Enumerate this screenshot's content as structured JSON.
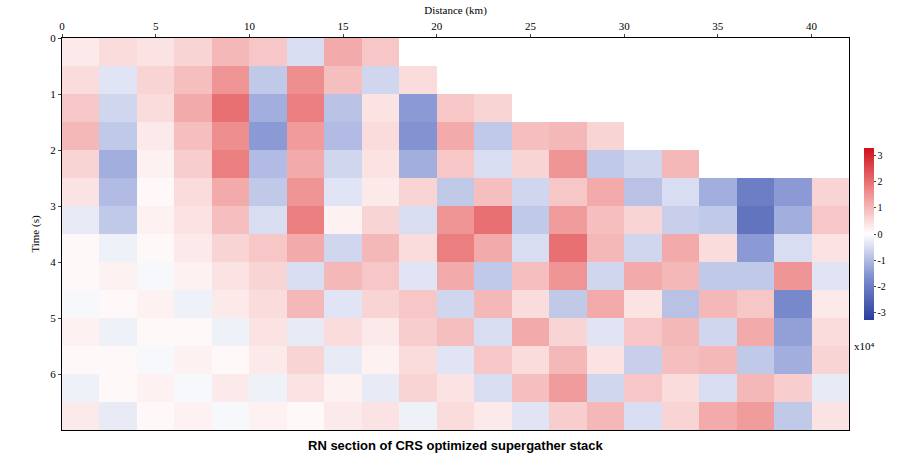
{
  "chart_data": {
    "type": "heatmap",
    "title": "RN section of CRS optimized supergather stack",
    "x_label": "Distance (km)",
    "y_label": "Time (s)",
    "x": [
      1,
      3,
      5,
      7,
      9,
      11,
      13,
      15,
      17,
      19,
      21,
      23,
      25,
      27,
      29,
      31,
      33,
      35,
      37,
      39,
      41
    ],
    "y": [
      0.25,
      0.75,
      1.25,
      1.75,
      2.25,
      2.75,
      3.25,
      3.75,
      4.25,
      4.75,
      5.25,
      5.75,
      6.25,
      6.75
    ],
    "z": [
      [
        0.3,
        0.5,
        0.4,
        0.6,
        1.0,
        0.8,
        -0.5,
        1.2,
        0.8,
        null,
        null,
        null,
        null,
        null,
        null,
        null,
        null,
        null,
        null,
        null,
        null
      ],
      [
        0.5,
        -0.4,
        0.6,
        0.9,
        1.5,
        -0.8,
        1.6,
        0.9,
        -0.6,
        0.5,
        null,
        null,
        null,
        null,
        null,
        null,
        null,
        null,
        null,
        null,
        null
      ],
      [
        0.8,
        -0.6,
        0.5,
        1.2,
        2.0,
        -1.2,
        1.8,
        -0.9,
        0.4,
        -1.5,
        0.8,
        0.6,
        null,
        null,
        null,
        null,
        null,
        null,
        null,
        null,
        null
      ],
      [
        1.0,
        -0.8,
        0.3,
        0.9,
        1.6,
        -1.5,
        1.4,
        -1.0,
        0.5,
        -1.6,
        1.2,
        -0.8,
        0.9,
        1.0,
        0.6,
        null,
        null,
        null,
        null,
        null,
        null
      ],
      [
        0.6,
        -1.2,
        0.2,
        0.7,
        1.8,
        -1.0,
        1.2,
        -0.6,
        0.4,
        -1.2,
        0.8,
        -0.5,
        0.6,
        1.5,
        -0.8,
        -0.6,
        1.0,
        null,
        null,
        null,
        null
      ],
      [
        0.4,
        -1.0,
        0.1,
        0.5,
        1.2,
        -0.8,
        1.5,
        -0.4,
        0.3,
        0.6,
        -0.8,
        0.9,
        -0.6,
        0.8,
        1.2,
        -0.9,
        -0.5,
        -1.2,
        -2.0,
        -1.5,
        0.6
      ],
      [
        -0.3,
        -0.8,
        0.2,
        0.4,
        0.9,
        -0.5,
        1.8,
        0.2,
        0.6,
        -0.5,
        1.5,
        2.0,
        -0.8,
        1.4,
        0.9,
        0.6,
        -0.7,
        -0.8,
        -2.2,
        -1.2,
        0.8
      ],
      [
        0.1,
        -0.2,
        0.1,
        0.3,
        0.6,
        0.8,
        1.2,
        -0.6,
        1.0,
        0.5,
        1.8,
        1.2,
        -0.5,
        2.0,
        1.0,
        -0.6,
        1.2,
        0.5,
        -1.5,
        -0.5,
        0.4
      ],
      [
        0.1,
        0.2,
        -0.1,
        0.2,
        0.4,
        0.6,
        -0.5,
        1.0,
        0.8,
        -0.4,
        1.2,
        -0.8,
        0.9,
        1.5,
        -0.6,
        1.2,
        1.0,
        -0.8,
        -0.8,
        1.5,
        -0.4
      ],
      [
        -0.1,
        0.1,
        0.2,
        -0.2,
        0.3,
        0.5,
        1.0,
        -0.4,
        0.6,
        0.8,
        -0.6,
        1.0,
        0.5,
        -0.8,
        1.2,
        0.4,
        -0.9,
        1.0,
        0.8,
        -1.8,
        0.3
      ],
      [
        0.2,
        -0.2,
        0.1,
        0.1,
        -0.2,
        0.4,
        -0.3,
        0.5,
        0.3,
        0.7,
        0.9,
        -0.5,
        1.2,
        0.6,
        -0.4,
        0.8,
        1.0,
        -0.6,
        1.2,
        -1.4,
        0.5
      ],
      [
        0.1,
        0.1,
        -0.1,
        0.2,
        0.1,
        0.3,
        0.6,
        -0.3,
        0.2,
        0.5,
        -0.4,
        0.8,
        0.5,
        1.0,
        0.4,
        -0.7,
        0.9,
        1.0,
        -0.8,
        -1.2,
        0.6
      ],
      [
        -0.2,
        0.1,
        0.2,
        -0.1,
        0.3,
        -0.2,
        0.4,
        0.2,
        -0.3,
        0.6,
        0.4,
        -0.5,
        0.9,
        1.4,
        -0.6,
        0.8,
        0.5,
        -0.5,
        1.0,
        0.7,
        -0.3
      ],
      [
        0.3,
        -0.3,
        0.1,
        0.2,
        -0.1,
        0.2,
        0.1,
        0.3,
        0.4,
        -0.2,
        0.5,
        0.3,
        -0.4,
        0.7,
        1.0,
        -0.5,
        0.6,
        1.2,
        1.4,
        -0.8,
        0.4
      ]
    ],
    "xlim": [
      0,
      42
    ],
    "ylim": [
      7,
      0
    ],
    "xticks": [
      0,
      5,
      10,
      15,
      20,
      25,
      30,
      35,
      40
    ],
    "yticks": [
      0,
      1,
      2,
      3,
      4,
      5,
      6
    ],
    "zlim": [
      -3.3,
      3.3
    ],
    "colorbar_ticks": [
      3,
      2,
      1,
      0,
      -1,
      -2,
      -3
    ],
    "colorbar_label": "x10⁴",
    "grid": false
  }
}
